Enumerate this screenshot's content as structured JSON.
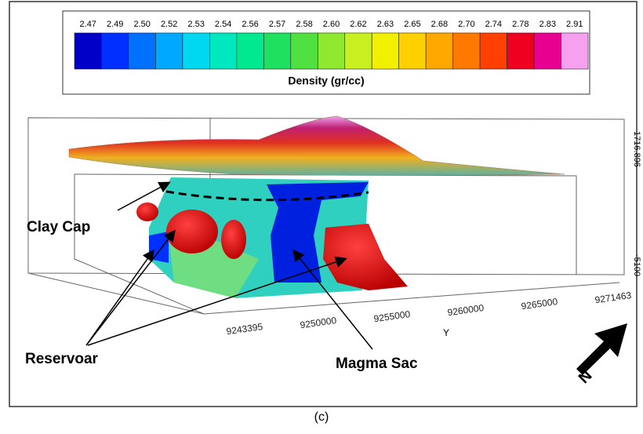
{
  "colorbar": {
    "labels": [
      "2.47",
      "2.49",
      "2.50",
      "2.52",
      "2.53",
      "2.54",
      "2.56",
      "2.57",
      "2.58",
      "2.60",
      "2.62",
      "2.63",
      "2.65",
      "2.68",
      "2.70",
      "2.74",
      "2.78",
      "2.83",
      "2.91"
    ],
    "colors": [
      "#0000c8",
      "#0030ff",
      "#0070ff",
      "#00a8ff",
      "#00d8f0",
      "#00e8c0",
      "#00e890",
      "#20e060",
      "#50e040",
      "#90e830",
      "#c8f020",
      "#f0f000",
      "#ffd000",
      "#ffa800",
      "#ff7800",
      "#ff4000",
      "#f00020",
      "#e80090",
      "#f8a0f0"
    ],
    "title": "Density (gr/cc)"
  },
  "annotations": {
    "clay_cap": "Clay Cap",
    "reservoar": "Reservoar",
    "magma_sac": "Magma Sac",
    "north": "N"
  },
  "axes": {
    "y_ticks": [
      "9243395",
      "9250000",
      "9255000",
      "9260000",
      "9265000",
      "9271463"
    ],
    "y_label": "Y",
    "z_top": "1716.896",
    "z_bottom": "-5100"
  },
  "caption": "(c)"
}
